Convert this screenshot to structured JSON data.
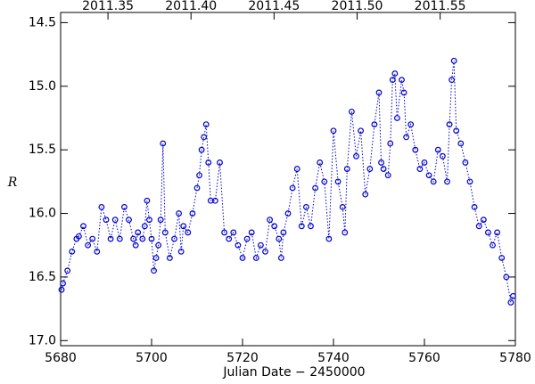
{
  "chart_data": {
    "type": "scatter",
    "x_label": "Julian Date − 2450000",
    "y_label": "R",
    "xlim": [
      5680,
      5780
    ],
    "xticks": [
      5680,
      5700,
      5720,
      5740,
      5760,
      5780
    ],
    "ylim": [
      17.04,
      14.42
    ],
    "yticks": [
      {
        "value": 14.5,
        "label": "14.5"
      },
      {
        "value": 15.0,
        "label": "15.0"
      },
      {
        "value": 15.5,
        "label": "15.5"
      },
      {
        "value": 16.0,
        "label": "16.0"
      },
      {
        "value": 16.5,
        "label": "16.5"
      },
      {
        "value": 17.0,
        "label": "17.0"
      }
    ],
    "x2lim": [
      2011.3215,
      2011.5953
    ],
    "x2ticks": [
      2011.35,
      {
        "value": 2011.4,
        "label": "2011.40"
      },
      2011.45,
      {
        "value": 2011.5,
        "label": "2011.50"
      },
      2011.55
    ],
    "series": [
      {
        "color": "#0000cc",
        "line_style": "dotted",
        "x": [
          5680.2,
          5680.5,
          5681.5,
          5682.5,
          5683.5,
          5684,
          5685,
          5686,
          5687,
          5688,
          5689,
          5690,
          5691,
          5692,
          5693,
          5694,
          5695,
          5696,
          5696.5,
          5697,
          5698,
          5698.5,
          5699,
          5699.5,
          5700,
          5700.5,
          5701,
          5701.5,
          5702,
          5702.5,
          5703,
          5704,
          5705,
          5706,
          5706.5,
          5707,
          5708,
          5709,
          5710,
          5710.5,
          5711,
          5711.5,
          5712,
          5712.5,
          5713,
          5714,
          5715,
          5716,
          5717,
          5718,
          5719,
          5720,
          5721,
          5722,
          5723,
          5724,
          5725,
          5726,
          5727,
          5728,
          5728.5,
          5729,
          5730,
          5731,
          5732,
          5733,
          5734,
          5735,
          5736,
          5737,
          5738,
          5739,
          5740,
          5741,
          5742,
          5742.5,
          5743,
          5744,
          5745,
          5746,
          5747,
          5748,
          5749,
          5750,
          5750.5,
          5751,
          5752,
          5752.5,
          5753,
          5753.5,
          5754,
          5755,
          5755.5,
          5756,
          5757,
          5758,
          5759,
          5760,
          5761,
          5762,
          5763,
          5764,
          5765,
          5765.5,
          5766,
          5766.5,
          5767,
          5768,
          5769,
          5770,
          5771,
          5772,
          5773,
          5774,
          5775,
          5776,
          5777,
          5778,
          5779,
          5779.5
        ],
        "values": [
          16.6,
          16.55,
          16.45,
          16.3,
          16.2,
          16.18,
          16.1,
          16.25,
          16.2,
          16.3,
          15.95,
          16.05,
          16.2,
          16.05,
          16.2,
          15.95,
          16.05,
          16.2,
          16.25,
          16.15,
          16.2,
          16.1,
          15.9,
          16.05,
          16.2,
          16.45,
          16.35,
          16.25,
          16.05,
          15.45,
          16.15,
          16.35,
          16.2,
          16.0,
          16.3,
          16.1,
          16.15,
          16.0,
          15.8,
          15.7,
          15.5,
          15.4,
          15.3,
          15.6,
          15.9,
          15.9,
          15.6,
          16.15,
          16.2,
          16.15,
          16.25,
          16.35,
          16.2,
          16.15,
          16.35,
          16.25,
          16.3,
          16.05,
          16.1,
          16.2,
          16.35,
          16.15,
          16.0,
          15.8,
          15.65,
          16.1,
          15.95,
          16.1,
          15.8,
          15.6,
          15.75,
          16.2,
          15.35,
          15.75,
          15.95,
          16.15,
          15.65,
          15.2,
          15.55,
          15.35,
          15.85,
          15.65,
          15.3,
          15.05,
          15.6,
          15.65,
          15.7,
          15.45,
          14.95,
          14.9,
          15.25,
          14.95,
          15.05,
          15.4,
          15.3,
          15.5,
          15.65,
          15.6,
          15.7,
          15.75,
          15.5,
          15.55,
          15.75,
          15.3,
          14.95,
          14.8,
          15.35,
          15.45,
          15.6,
          15.75,
          15.95,
          16.1,
          16.05,
          16.15,
          16.25,
          16.15,
          16.35,
          16.5,
          16.7,
          16.65
        ]
      }
    ]
  }
}
